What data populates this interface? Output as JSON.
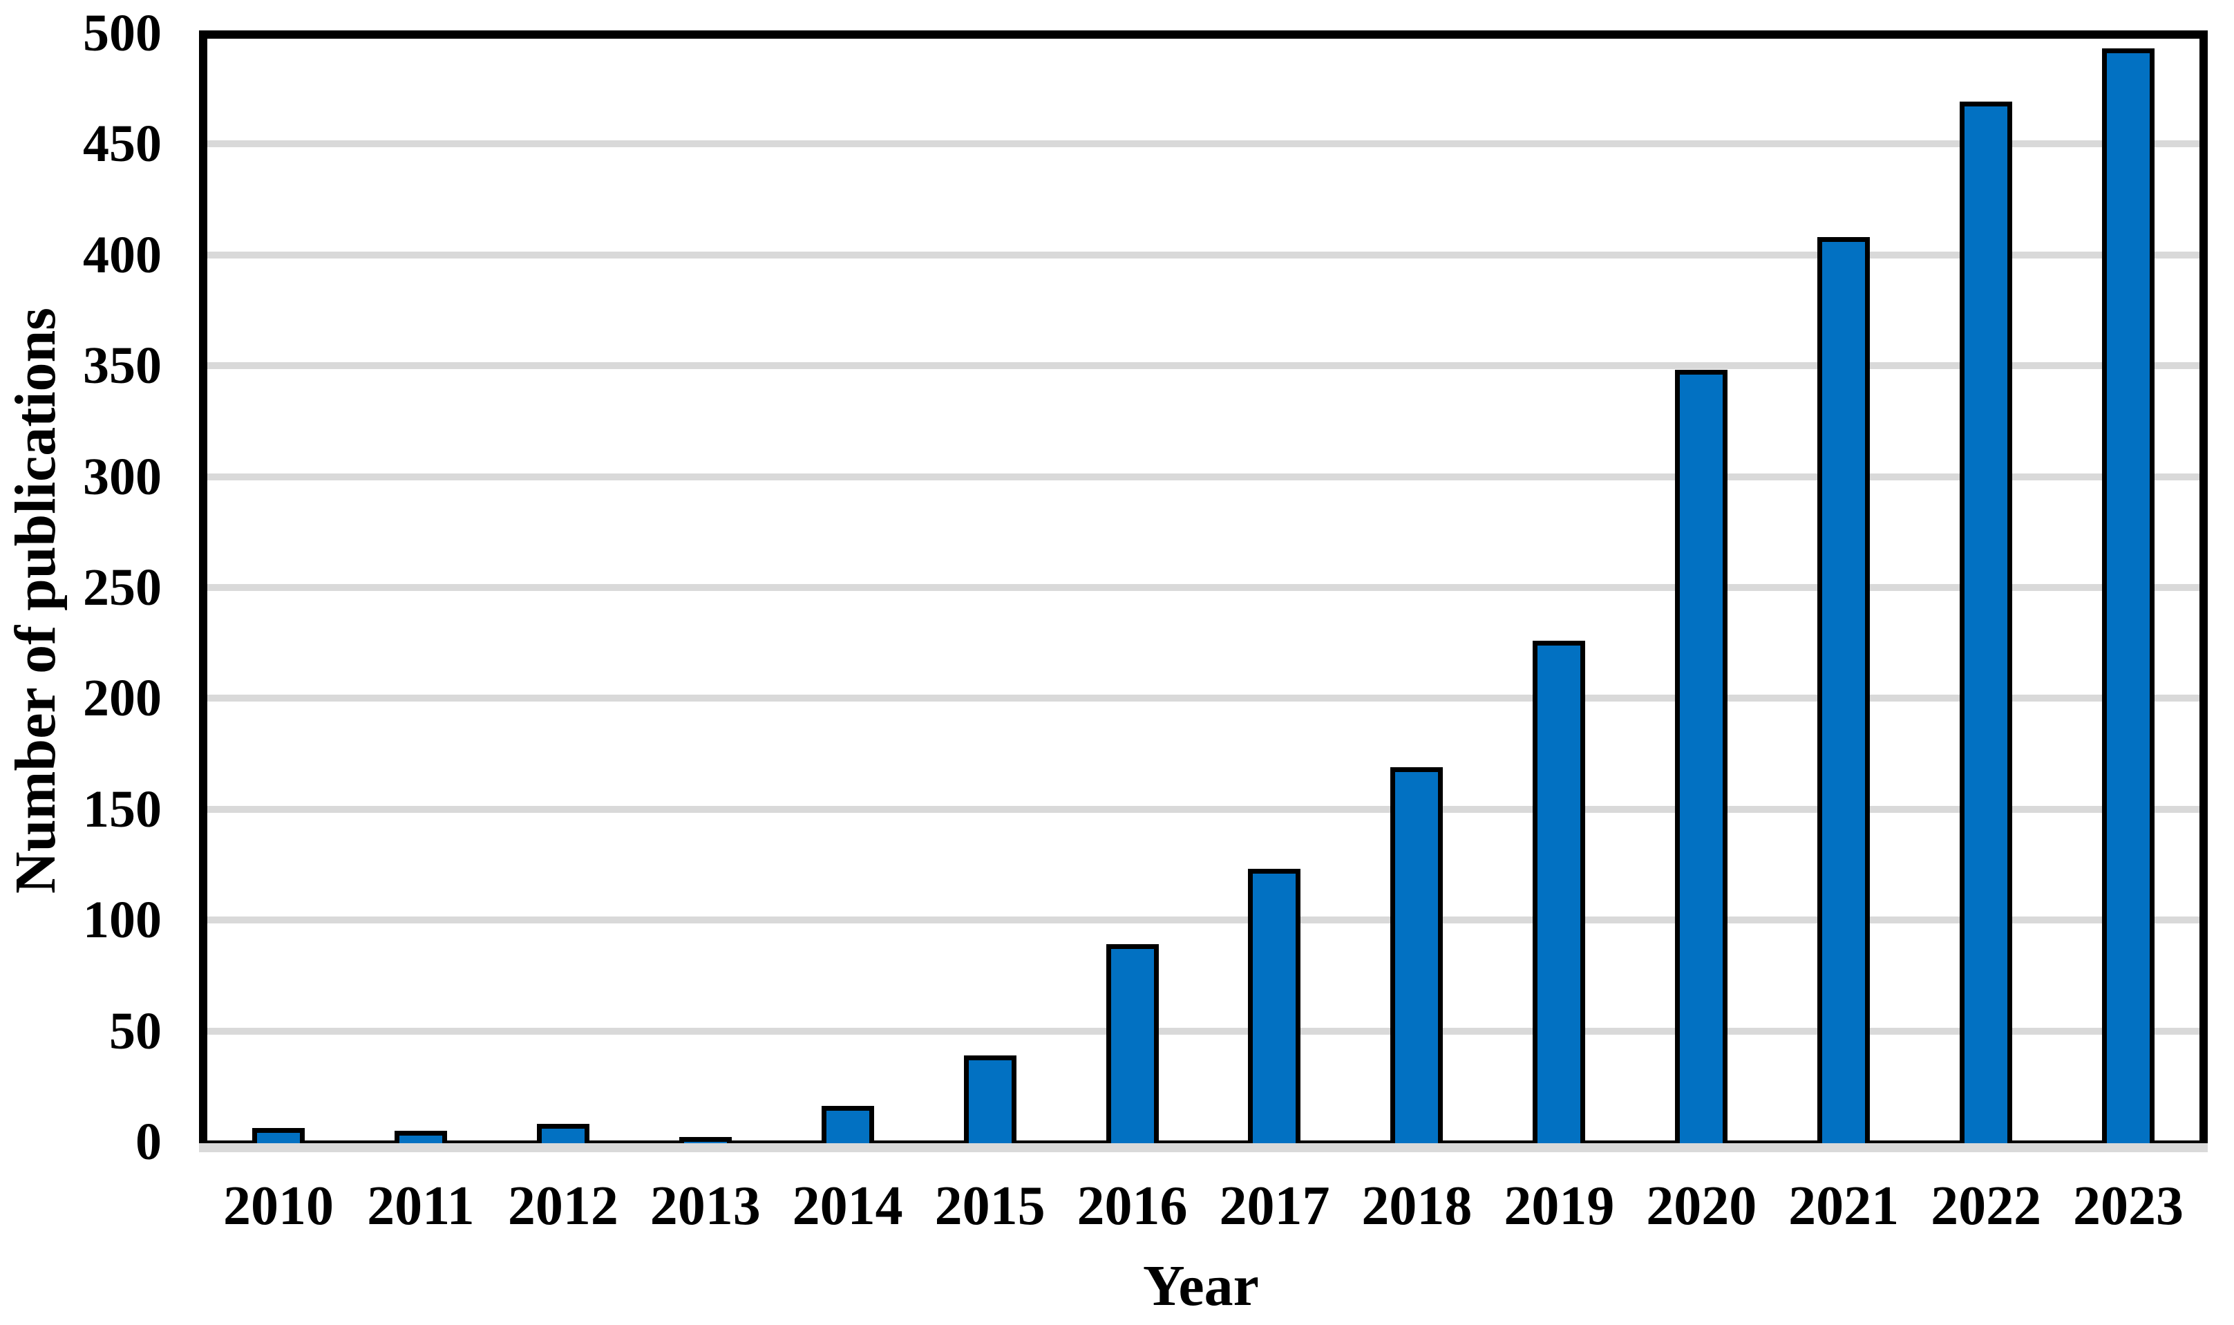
{
  "chart_data": {
    "type": "bar",
    "title": "",
    "categories": [
      "2010",
      "2011",
      "2012",
      "2013",
      "2014",
      "2015",
      "2016",
      "2017",
      "2018",
      "2019",
      "2020",
      "2021",
      "2022",
      "2023"
    ],
    "values": [
      5,
      4,
      7,
      1,
      15,
      38,
      88,
      122,
      168,
      225,
      347,
      407,
      468,
      492
    ],
    "xlabel": "Year",
    "ylabel": "Number of publications",
    "ylim": [
      0,
      500
    ],
    "yticks": [
      0,
      50,
      100,
      150,
      200,
      250,
      300,
      350,
      400,
      450,
      500
    ],
    "grid": "horizontal-major",
    "legend": "none",
    "bar_color": "#0271C2",
    "bar_border_color": "#000000",
    "gridline_color": "#D9D9D9",
    "axis_color": "#000000",
    "axis_band_color": "#D9D9D9"
  }
}
